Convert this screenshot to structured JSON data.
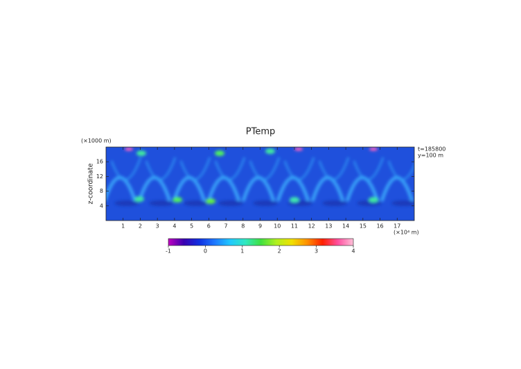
{
  "chart_data": {
    "type": "heatmap",
    "title": "PTemp",
    "x_unit": "(×10⁴ m)",
    "y_unit": "(×1000 m)",
    "y_label": "z-coordinate",
    "annotations": [
      "t=185800",
      "y=100 m"
    ],
    "xlim": [
      0,
      18
    ],
    "xticks": [
      1,
      2,
      3,
      4,
      5,
      6,
      7,
      8,
      9,
      10,
      11,
      12,
      13,
      14,
      15,
      16,
      17
    ],
    "ylim": [
      0,
      20
    ],
    "yticks": [
      4,
      8,
      12,
      16
    ],
    "colorbar": {
      "lim": [
        -1,
        4
      ],
      "ticks": [
        -1,
        0,
        1,
        2,
        3,
        4
      ],
      "colors": [
        "#c000c0",
        "#3a00b0",
        "#1030e0",
        "#1e78ff",
        "#20c8ff",
        "#30e8c0",
        "#40e040",
        "#b0f020",
        "#f0e000",
        "#ff9000",
        "#ff2000",
        "#ff50a0",
        "#ffc0d8"
      ]
    }
  }
}
